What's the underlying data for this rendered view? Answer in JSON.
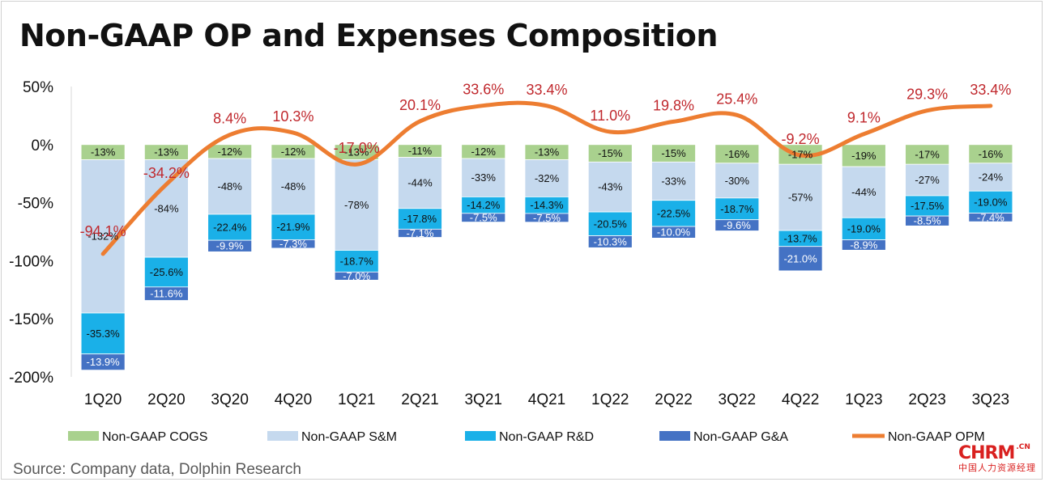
{
  "title": "Non-GAAP OP and Expenses Composition",
  "source": "Source: Company data, Dolphin Research",
  "logo": {
    "main": "CHRM",
    "suffix": ".CN",
    "sub": "中国人力资源经理"
  },
  "colors": {
    "cogs": "#a9d18e",
    "sm": "#c5d9ee",
    "rd": "#1ab0e8",
    "ga": "#4472c4",
    "opm": "#ed7d31",
    "opm_label": "#c0282d"
  },
  "chart_data": {
    "type": "bar",
    "title": "Non-GAAP OP and Expenses Composition",
    "xlabel": "",
    "ylabel": "",
    "ylim": [
      -200,
      50
    ],
    "yticks": [
      50,
      0,
      -50,
      -100,
      -150,
      -200
    ],
    "ytick_labels": [
      "50%",
      "0%",
      "-50%",
      "-100%",
      "-150%",
      "-200%"
    ],
    "grid": false,
    "legend_position": "bottom",
    "categories": [
      "1Q20",
      "2Q20",
      "3Q20",
      "4Q20",
      "1Q21",
      "2Q21",
      "3Q21",
      "4Q21",
      "1Q22",
      "2Q22",
      "3Q22",
      "4Q22",
      "1Q23",
      "2Q23",
      "3Q23"
    ],
    "series": [
      {
        "name": "Non-GAAP COGS",
        "type": "stacked-bar",
        "values": [
          -13,
          -13,
          -12,
          -12,
          -13,
          -11,
          -12,
          -13,
          -15,
          -15,
          -16,
          -17,
          -19,
          -17,
          -16
        ],
        "labels": [
          "-13%",
          "-13%",
          "-12%",
          "-12%",
          "-13%",
          "-11%",
          "-12%",
          "-13%",
          "-15%",
          "-15%",
          "-16%",
          "-17%",
          "-19%",
          "-17%",
          "-16%"
        ]
      },
      {
        "name": "Non-GAAP S&M",
        "type": "stacked-bar",
        "values": [
          -132,
          -84,
          -48,
          -48,
          -78,
          -44,
          -33,
          -32,
          -43,
          -33,
          -30,
          -57,
          -44,
          -27,
          -24
        ],
        "labels": [
          "-132%",
          "-84%",
          "-48%",
          "-48%",
          "-78%",
          "-44%",
          "-33%",
          "-32%",
          "-43%",
          "-33%",
          "-30%",
          "-57%",
          "-44%",
          "-27%",
          "-24%"
        ]
      },
      {
        "name": "Non-GAAP R&D",
        "type": "stacked-bar",
        "values": [
          -35.3,
          -25.6,
          -22.4,
          -21.9,
          -18.7,
          -17.8,
          -14.2,
          -14.3,
          -20.5,
          -22.5,
          -18.7,
          -13.7,
          -19.0,
          -17.5,
          -19.0
        ],
        "labels": [
          "-35.3%",
          "-25.6%",
          "-22.4%",
          "-21.9%",
          "-18.7%",
          "-17.8%",
          "-14.2%",
          "-14.3%",
          "-20.5%",
          "-22.5%",
          "-18.7%",
          "-13.7%",
          "-19.0%",
          "-17.5%",
          "-19.0%"
        ]
      },
      {
        "name": "Non-GAAP G&A",
        "type": "stacked-bar",
        "values": [
          -13.9,
          -11.6,
          -9.9,
          -7.3,
          -7.0,
          -7.1,
          -7.5,
          -7.5,
          -10.3,
          -10.0,
          -9.6,
          -21.0,
          -8.9,
          -8.5,
          -7.4
        ],
        "labels": [
          "-13.9%",
          "-11.6%",
          "-9.9%",
          "-7.3%",
          "-7.0%",
          "-7.1%",
          "-7.5%",
          "-7.5%",
          "-10.3%",
          "-10.0%",
          "-9.6%",
          "-21.0%",
          "-8.9%",
          "-8.5%",
          "-7.4%"
        ]
      },
      {
        "name": "Non-GAAP OPM",
        "type": "line",
        "values": [
          -94.1,
          -34.2,
          8.4,
          10.3,
          -17.0,
          20.1,
          33.6,
          33.4,
          11.0,
          19.8,
          25.4,
          -9.2,
          9.1,
          29.3,
          33.4
        ],
        "labels": [
          "-94.1%",
          "-34.2%",
          "8.4%",
          "10.3%",
          "-17.0%",
          "20.1%",
          "33.6%",
          "33.4%",
          "11.0%",
          "19.8%",
          "25.4%",
          "-9.2%",
          "9.1%",
          "29.3%",
          "33.4%"
        ]
      }
    ]
  }
}
